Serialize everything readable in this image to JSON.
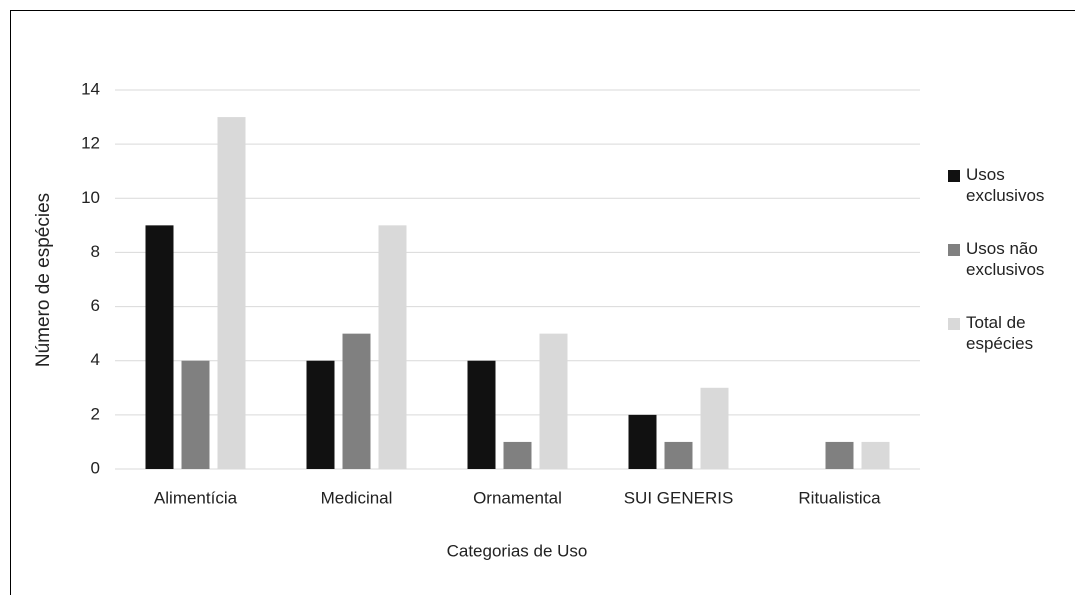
{
  "chart_data": {
    "type": "bar",
    "x_label": "Categorias de Uso",
    "y_label": "Número de espécies",
    "categories": [
      "Alimentícia",
      "Medicinal",
      "Ornamental",
      "SUI GENERIS",
      "Ritualistica"
    ],
    "series": [
      {
        "name": "Usos exclusivos",
        "color": "#111111",
        "values": [
          9,
          4,
          4,
          2,
          0
        ]
      },
      {
        "name": "Usos não exclusivos",
        "color": "#808080",
        "values": [
          4,
          5,
          1,
          1,
          1
        ]
      },
      {
        "name": "Total de espécies",
        "color": "#d9d9d9",
        "values": [
          13,
          9,
          5,
          3,
          1
        ]
      }
    ],
    "ylim": [
      0,
      14
    ],
    "yticks": [
      0,
      2,
      4,
      6,
      8,
      10,
      12,
      14
    ],
    "grid": true,
    "legend": "right"
  }
}
